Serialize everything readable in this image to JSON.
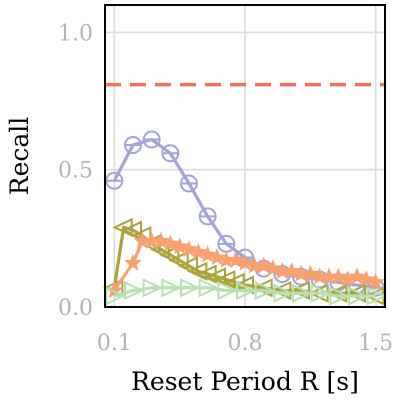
{
  "chart_data": {
    "type": "line",
    "xlabel": "Reset Period R [s]",
    "ylabel": "Recall",
    "xlim": [
      0.05,
      1.55
    ],
    "ylim": [
      0.0,
      1.1
    ],
    "x_ticks": [
      0.1,
      0.8,
      1.5
    ],
    "x_tick_labels": [
      "0.1",
      "0.8",
      "1.5"
    ],
    "y_ticks": [
      0.0,
      0.5,
      1.0
    ],
    "y_tick_labels": [
      "0.0",
      "0.5",
      "1.0"
    ],
    "grid": true,
    "reference_line": {
      "y": 0.81,
      "style": "dashed",
      "color": "#f2735d"
    },
    "series": [
      {
        "marker": "circle",
        "color": "#a3a3d6",
        "x": [
          0.1,
          0.2,
          0.3,
          0.4,
          0.5,
          0.6,
          0.7,
          0.8,
          0.9,
          1.0,
          1.1,
          1.2,
          1.3,
          1.4,
          1.5
        ],
        "y": [
          0.46,
          0.59,
          0.61,
          0.56,
          0.45,
          0.33,
          0.23,
          0.18,
          0.14,
          0.12,
          0.11,
          0.1,
          0.09,
          0.08,
          0.07
        ]
      },
      {
        "marker": "triangle-left",
        "color": "#aaa23a",
        "x": [
          0.1,
          0.15,
          0.2,
          0.25,
          0.3,
          0.35,
          0.4,
          0.45,
          0.5,
          0.55,
          0.6,
          0.65,
          0.7,
          0.75,
          0.8,
          0.9,
          1.0,
          1.1,
          1.2,
          1.3,
          1.4,
          1.5
        ],
        "y": [
          0.07,
          0.29,
          0.28,
          0.26,
          0.23,
          0.21,
          0.19,
          0.17,
          0.15,
          0.13,
          0.12,
          0.11,
          0.1,
          0.09,
          0.08,
          0.07,
          0.06,
          0.06,
          0.05,
          0.05,
          0.05,
          0.04
        ]
      },
      {
        "marker": "star",
        "color": "#f7a070",
        "x": [
          0.1,
          0.2,
          0.25,
          0.3,
          0.35,
          0.4,
          0.45,
          0.5,
          0.55,
          0.6,
          0.65,
          0.7,
          0.75,
          0.8,
          0.85,
          0.9,
          0.95,
          1.0,
          1.05,
          1.1,
          1.15,
          1.2,
          1.25,
          1.3,
          1.35,
          1.4,
          1.45,
          1.5
        ],
        "y": [
          0.06,
          0.16,
          0.24,
          0.24,
          0.24,
          0.23,
          0.22,
          0.21,
          0.2,
          0.19,
          0.18,
          0.17,
          0.17,
          0.16,
          0.15,
          0.15,
          0.14,
          0.13,
          0.13,
          0.12,
          0.12,
          0.11,
          0.11,
          0.11,
          0.1,
          0.11,
          0.1,
          0.09
        ]
      },
      {
        "marker": "triangle-right",
        "color": "#b8e0b0",
        "x": [
          0.1,
          0.2,
          0.3,
          0.4,
          0.5,
          0.6,
          0.7,
          0.8,
          0.9,
          1.0,
          1.1,
          1.2,
          1.3,
          1.4,
          1.5
        ],
        "y": [
          0.04,
          0.06,
          0.07,
          0.07,
          0.07,
          0.07,
          0.06,
          0.06,
          0.06,
          0.05,
          0.05,
          0.05,
          0.04,
          0.04,
          0.04
        ]
      }
    ]
  }
}
